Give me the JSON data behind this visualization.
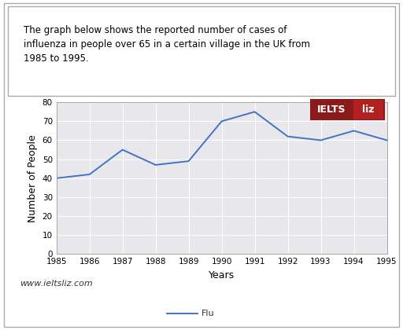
{
  "years": [
    1985,
    1986,
    1987,
    1988,
    1989,
    1990,
    1991,
    1992,
    1993,
    1994,
    1995
  ],
  "flu_cases": [
    40,
    42,
    55,
    47,
    49,
    70,
    75,
    62,
    60,
    65,
    60
  ],
  "line_color": "#4472C4",
  "plot_bg": "#e8e8ec",
  "xlabel": "Years",
  "ylabel": "Number of People",
  "ylim": [
    0,
    80
  ],
  "yticks": [
    0,
    10,
    20,
    30,
    40,
    50,
    60,
    70,
    80
  ],
  "title_text": "The graph below shows the reported number of cases of\ninfluenza in people over 65 in a certain village in the UK from\n1985 to 1995.",
  "legend_label": "Flu",
  "watermark": "www.ieltsliz.com",
  "ielts_bg": "#8B1A1A",
  "liz_bg": "#b22020",
  "xlabel_fontsize": 9,
  "ylabel_fontsize": 9,
  "tick_fontsize": 7.5,
  "title_fontsize": 8.5,
  "watermark_fontsize": 8,
  "legend_fontsize": 8
}
